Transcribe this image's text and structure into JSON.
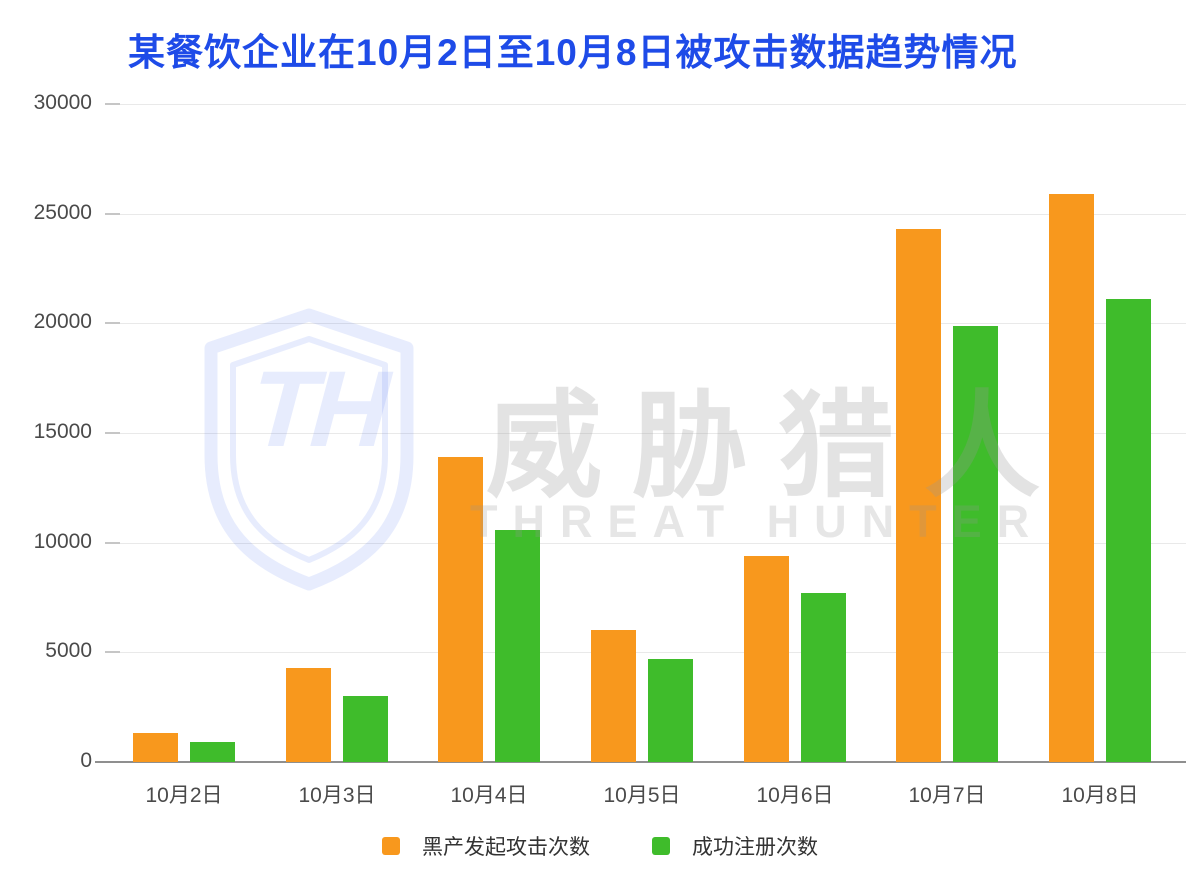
{
  "title": "某餐饮企业在10月2日至10月8日被攻击数据趋势情况",
  "watermark": {
    "monogram": "TH",
    "cn_text": "威胁猎人",
    "en_text": "THREAT HUNTER"
  },
  "colors": {
    "title": "#1E4BE8",
    "attack_series": "#F8981D",
    "register_series": "#3FBC2B",
    "axis_label": "#4a4a4a",
    "gridline": "#e9e9e9",
    "baseline": "#8f8f8f"
  },
  "chart_data": {
    "type": "bar",
    "title": "某餐饮企业在10月2日至10月8日被攻击数据趋势情况",
    "categories": [
      "10月2日",
      "10月3日",
      "10月4日",
      "10月5日",
      "10月6日",
      "10月7日",
      "10月8日"
    ],
    "series": [
      {
        "name": "黑产发起攻击次数",
        "color": "#F8981D",
        "values": [
          1300,
          4300,
          13900,
          6000,
          9400,
          24300,
          25900
        ]
      },
      {
        "name": "成功注册次数",
        "color": "#3FBC2B",
        "values": [
          900,
          3000,
          10600,
          4700,
          7700,
          19900,
          21100
        ]
      }
    ],
    "xlabel": "",
    "ylabel": "",
    "ylim": [
      0,
      30000
    ],
    "ytick_step": 5000,
    "ytick_labels": [
      "0",
      "5000",
      "10000",
      "15000",
      "20000",
      "25000",
      "30000"
    ],
    "grid": true,
    "legend_position": "bottom"
  }
}
